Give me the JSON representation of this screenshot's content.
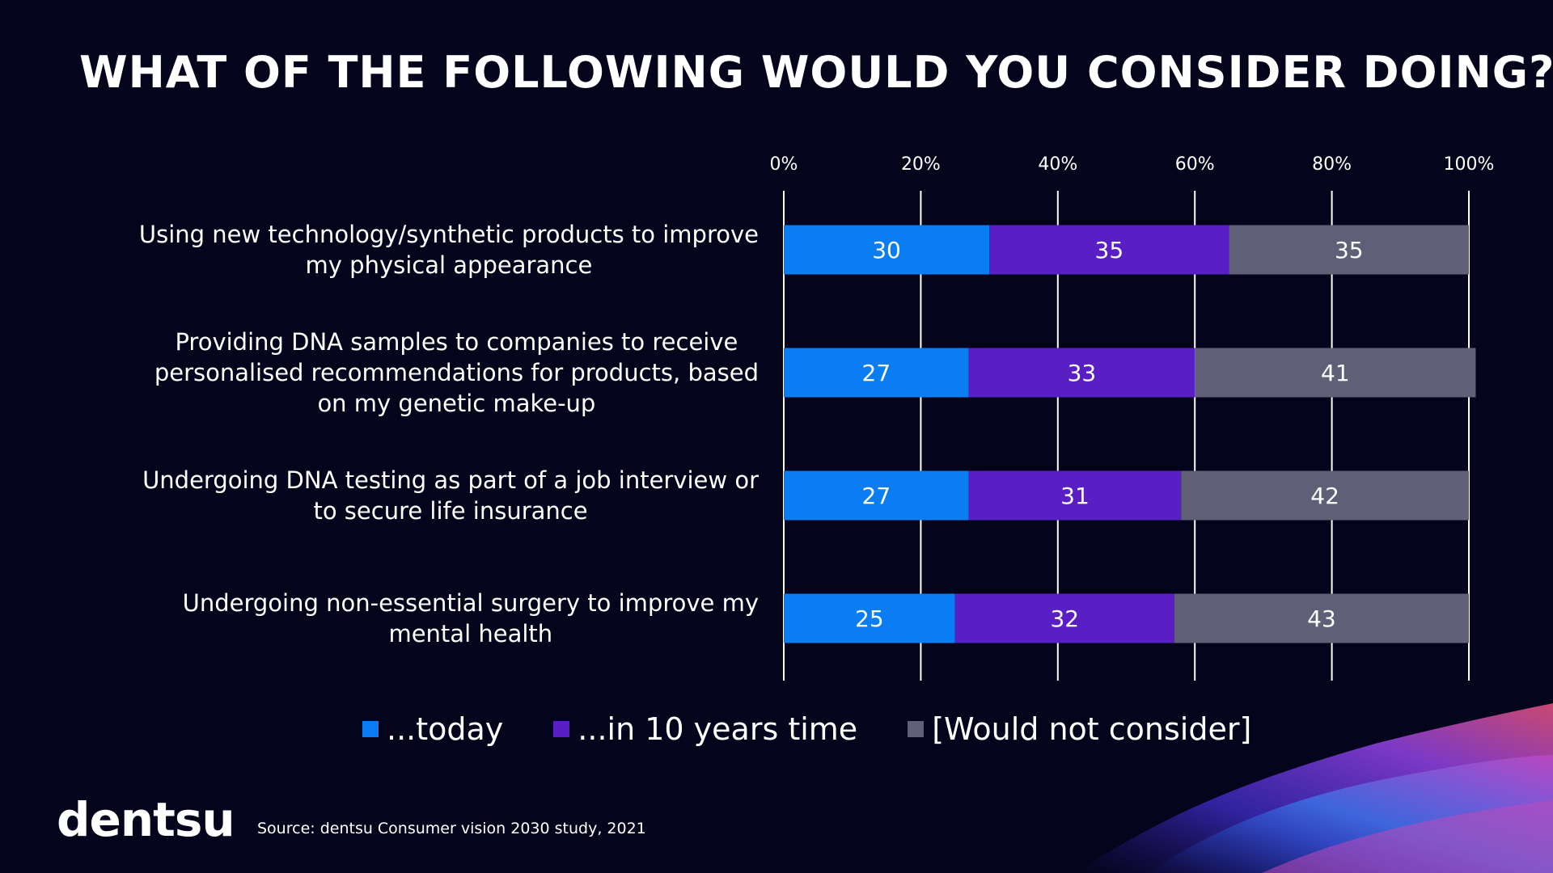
{
  "slide": {
    "title": "WHAT OF THE FOLLOWING WOULD YOU CONSIDER DOING?",
    "brand": "dentsu",
    "source": "Source: dentsu Consumer vision 2030 study, 2021"
  },
  "colors": {
    "background": "#04041c",
    "today": "#0a7df2",
    "in_10_years": "#5a1fc4",
    "would_not": "#5f5f78"
  },
  "chart_data": {
    "type": "bar",
    "orientation": "horizontal",
    "stacked": true,
    "xlim": [
      0,
      100
    ],
    "x_ticks": [
      "0%",
      "20%",
      "40%",
      "60%",
      "80%",
      "100%"
    ],
    "grid": true,
    "legend_position": "bottom",
    "categories": [
      [
        "Using new technology/synthetic products to improve",
        "my physical appearance"
      ],
      [
        "Providing DNA samples to companies to receive",
        "personalised recommendations for products, based",
        "on my genetic make-up"
      ],
      [
        "Undergoing DNA testing as part of a job interview or",
        "to secure life insurance"
      ],
      [
        "Undergoing non-essential surgery to improve my",
        "mental health"
      ]
    ],
    "series": [
      {
        "name": "...today",
        "color": "#0a7df2",
        "values": [
          30,
          27,
          27,
          25
        ]
      },
      {
        "name": "...in 10 years time",
        "color": "#5a1fc4",
        "values": [
          35,
          33,
          31,
          32
        ]
      },
      {
        "name": "[Would not consider]",
        "color": "#5f5f78",
        "values": [
          35,
          41,
          42,
          43
        ]
      }
    ]
  }
}
